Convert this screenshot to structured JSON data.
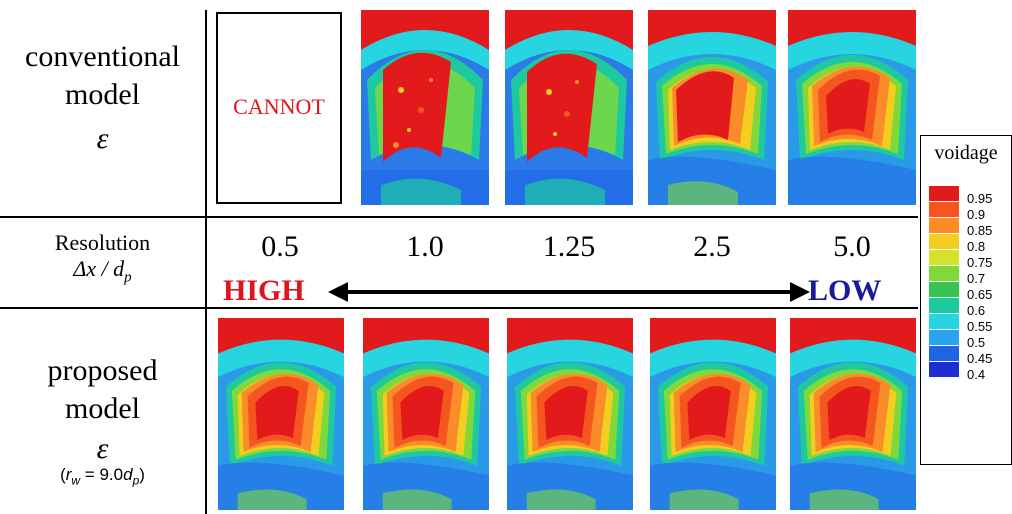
{
  "rows": {
    "conventional": {
      "line1": "conventional",
      "line2": "model",
      "symbol": "ε"
    },
    "resolution": {
      "line1": "Resolution",
      "formula": "Δx / d",
      "formula_sub": "p"
    },
    "proposed": {
      "line1": "proposed",
      "line2": "model",
      "symbol": "ε",
      "param_prefix": "(",
      "param_var": "r",
      "param_var_sub": "w",
      "param_eq": " = 9.0",
      "param_d": "d",
      "param_d_sub": "p",
      "param_suffix": ")"
    }
  },
  "cannot_label": "CANNOT",
  "resolutions": [
    "0.5",
    "1.0",
    "1.25",
    "2.5",
    "5.0"
  ],
  "arrow": {
    "left_label": "HIGH",
    "right_label": "LOW",
    "left_color": "#e0141e",
    "right_color": "#1a1a9e"
  },
  "legend": {
    "title": "voidage",
    "levels": [
      "0.95",
      "0.9",
      "0.85",
      "0.8",
      "0.75",
      "0.7",
      "0.65",
      "0.6",
      "0.55",
      "0.5",
      "0.45",
      "0.4"
    ],
    "colors": [
      "#e31a1c",
      "#f5551e",
      "#fb8c2a",
      "#f2cf1f",
      "#d2e32c",
      "#7fd93a",
      "#36c455",
      "#1fc9a0",
      "#27d5e0",
      "#2aa3f0",
      "#1f64e6",
      "#1d2fd2"
    ]
  }
}
